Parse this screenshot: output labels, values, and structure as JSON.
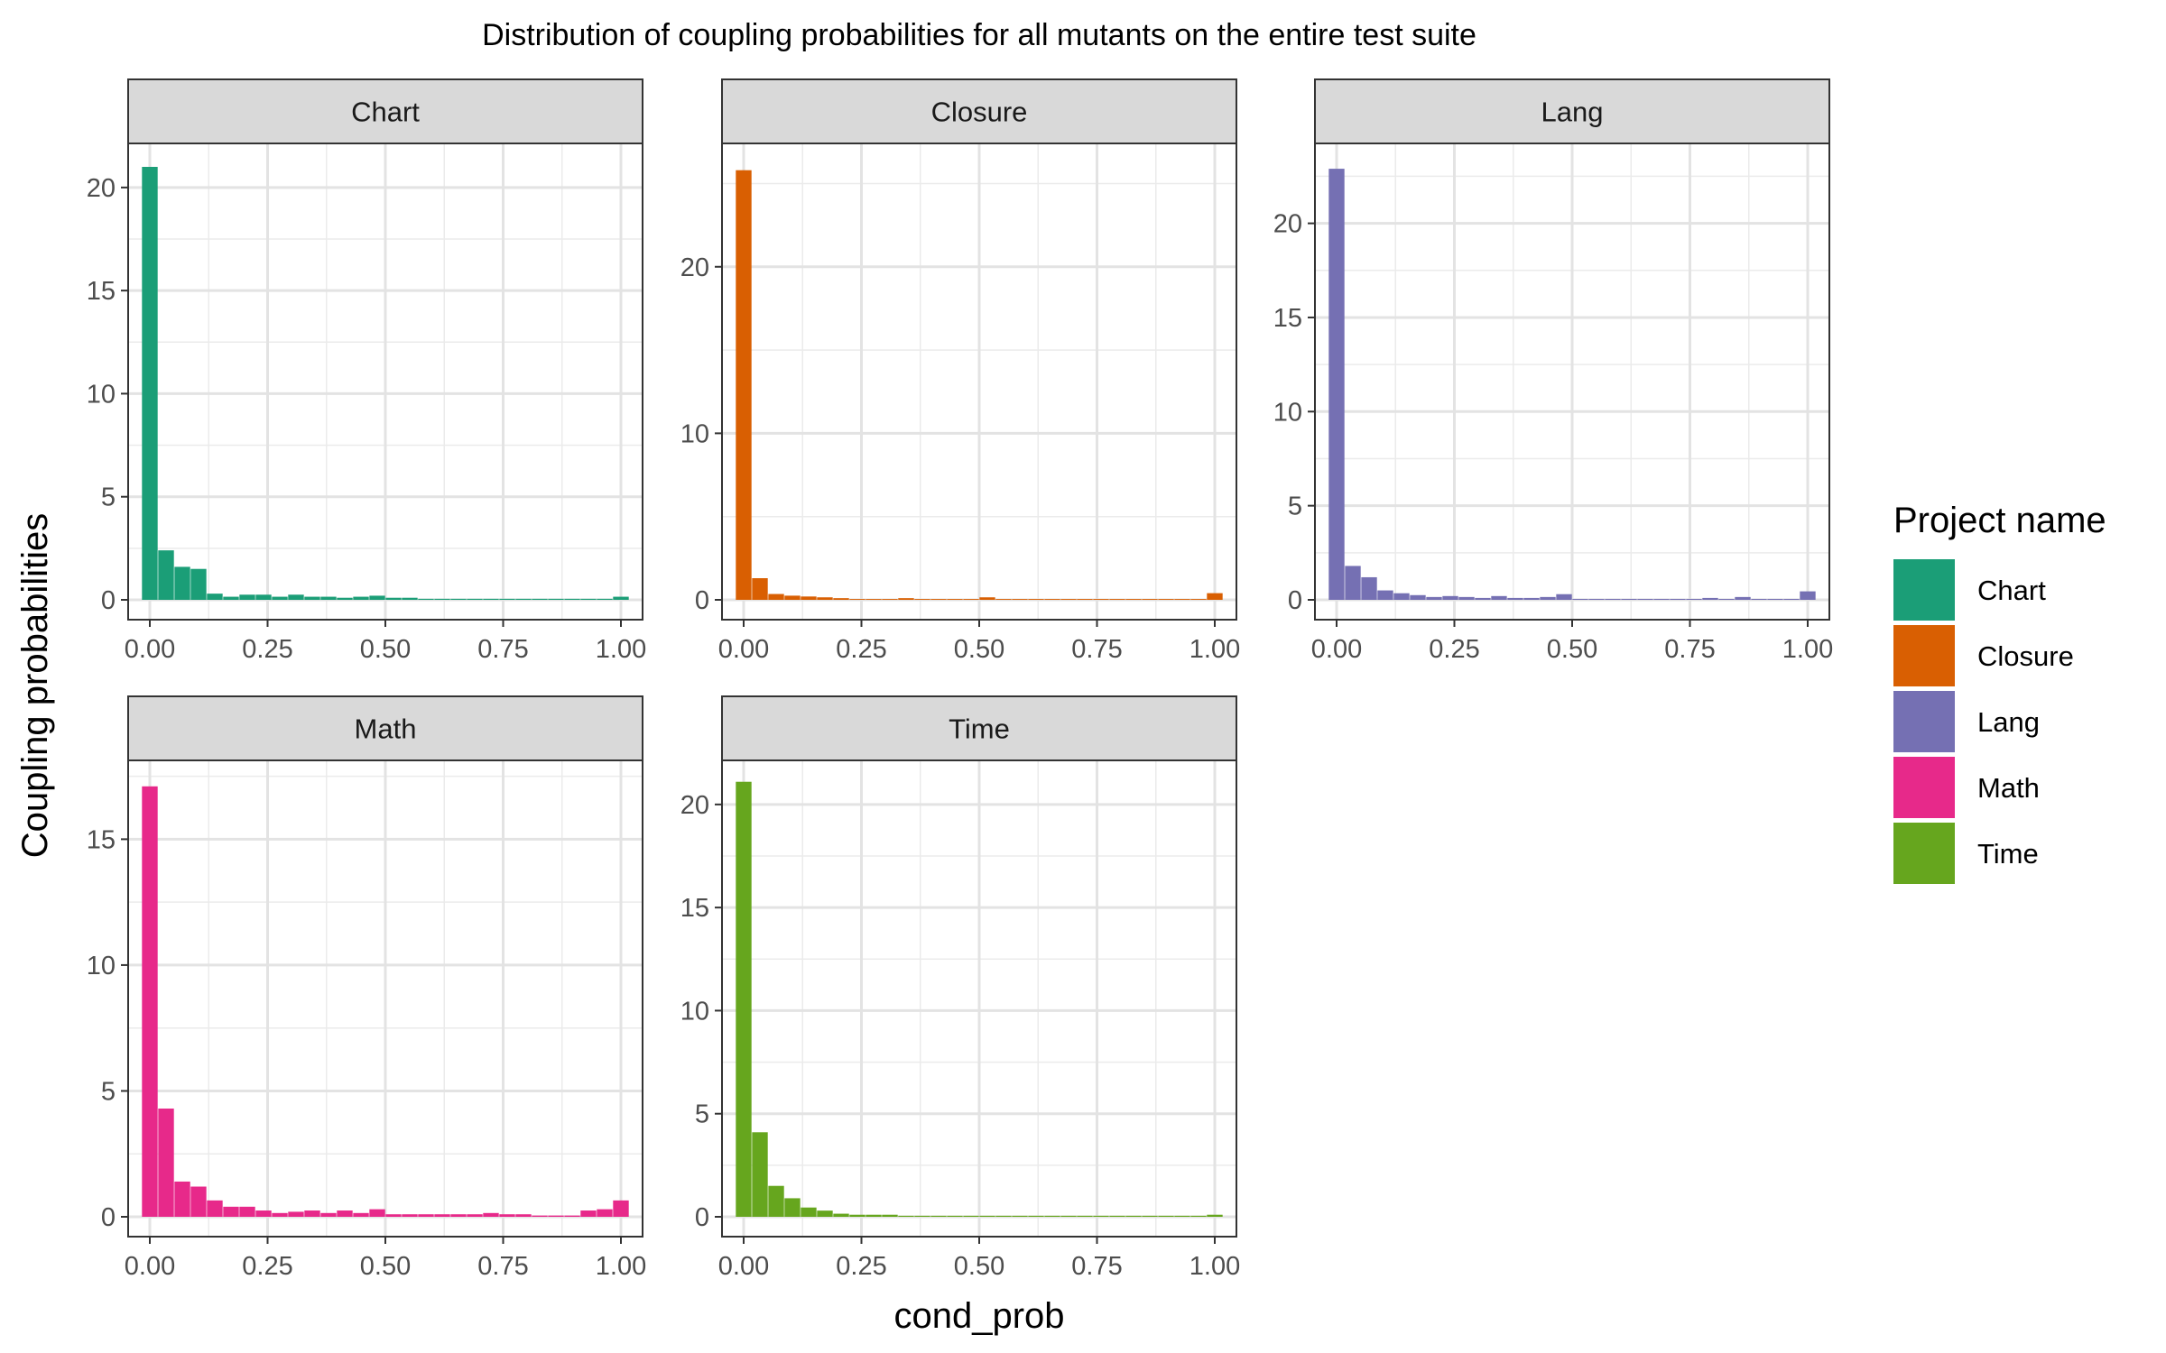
{
  "chart_data": {
    "type": "bar",
    "title": "Distribution of coupling probabilities for all mutants on the entire test suite",
    "xlabel": "cond_prob",
    "ylabel": "Coupling probabilities",
    "legend": {
      "title": "Project name",
      "position": "right"
    },
    "grid": true,
    "bin_width": 0.0333,
    "x_range": [
      0,
      1
    ],
    "x_ticks": [
      "0.00",
      "0.25",
      "0.50",
      "0.75",
      "1.00"
    ],
    "panels": [
      {
        "name": "Chart",
        "color": "#1B9E77",
        "ylim": [
          0,
          21
        ],
        "y_ticks": [
          0,
          5,
          10,
          15,
          20
        ],
        "bin_centers": [
          0,
          0.0345,
          0.069,
          0.1034,
          0.1379,
          0.1724,
          0.2069,
          0.2414,
          0.2759,
          0.3103,
          0.3448,
          0.3793,
          0.4138,
          0.4483,
          0.4828,
          0.5172,
          0.5517,
          0.5862,
          0.6207,
          0.6552,
          0.6897,
          0.7241,
          0.7586,
          0.7931,
          0.8276,
          0.8621,
          0.8966,
          0.931,
          0.9655,
          1.0
        ],
        "values": [
          21.0,
          2.4,
          1.6,
          1.5,
          0.3,
          0.15,
          0.25,
          0.25,
          0.15,
          0.25,
          0.15,
          0.15,
          0.1,
          0.15,
          0.2,
          0.1,
          0.1,
          0.05,
          0.05,
          0.05,
          0.05,
          0.05,
          0.05,
          0.05,
          0.05,
          0.05,
          0.05,
          0.05,
          0.05,
          0.15
        ]
      },
      {
        "name": "Closure",
        "color": "#D95F02",
        "ylim": [
          0,
          26
        ],
        "y_ticks": [
          0,
          10,
          20
        ],
        "bin_centers": [
          0,
          0.0345,
          0.069,
          0.1034,
          0.1379,
          0.1724,
          0.2069,
          0.2414,
          0.2759,
          0.3103,
          0.3448,
          0.3793,
          0.4138,
          0.4483,
          0.4828,
          0.5172,
          0.5517,
          0.5862,
          0.6207,
          0.6552,
          0.6897,
          0.7241,
          0.7586,
          0.7931,
          0.8276,
          0.8621,
          0.8966,
          0.931,
          0.9655,
          1.0
        ],
        "values": [
          25.8,
          1.3,
          0.35,
          0.25,
          0.2,
          0.15,
          0.1,
          0.05,
          0.05,
          0.05,
          0.1,
          0.05,
          0.05,
          0.05,
          0.05,
          0.15,
          0.05,
          0.05,
          0.05,
          0.05,
          0.05,
          0.05,
          0.05,
          0.05,
          0.05,
          0.05,
          0.05,
          0.05,
          0.05,
          0.4
        ]
      },
      {
        "name": "Lang",
        "color": "#7570B3",
        "ylim": [
          0,
          23
        ],
        "y_ticks": [
          0,
          5,
          10,
          15,
          20
        ],
        "bin_centers": [
          0,
          0.0345,
          0.069,
          0.1034,
          0.1379,
          0.1724,
          0.2069,
          0.2414,
          0.2759,
          0.3103,
          0.3448,
          0.3793,
          0.4138,
          0.4483,
          0.4828,
          0.5172,
          0.5517,
          0.5862,
          0.6207,
          0.6552,
          0.6897,
          0.7241,
          0.7586,
          0.7931,
          0.8276,
          0.8621,
          0.8966,
          0.931,
          0.9655,
          1.0
        ],
        "values": [
          22.9,
          1.8,
          1.2,
          0.5,
          0.35,
          0.25,
          0.15,
          0.2,
          0.15,
          0.1,
          0.2,
          0.1,
          0.1,
          0.15,
          0.3,
          0.05,
          0.05,
          0.05,
          0.05,
          0.05,
          0.05,
          0.05,
          0.05,
          0.1,
          0.05,
          0.15,
          0.05,
          0.05,
          0.05,
          0.45
        ]
      },
      {
        "name": "Math",
        "color": "#E7298A",
        "ylim": [
          0,
          17.2
        ],
        "y_ticks": [
          0,
          5,
          10,
          15
        ],
        "bin_centers": [
          0,
          0.0345,
          0.069,
          0.1034,
          0.1379,
          0.1724,
          0.2069,
          0.2414,
          0.2759,
          0.3103,
          0.3448,
          0.3793,
          0.4138,
          0.4483,
          0.4828,
          0.5172,
          0.5517,
          0.5862,
          0.6207,
          0.6552,
          0.6897,
          0.7241,
          0.7586,
          0.7931,
          0.8276,
          0.8621,
          0.8966,
          0.931,
          0.9655,
          1.0
        ],
        "values": [
          17.1,
          4.3,
          1.4,
          1.2,
          0.65,
          0.4,
          0.4,
          0.25,
          0.15,
          0.2,
          0.25,
          0.15,
          0.25,
          0.15,
          0.3,
          0.1,
          0.1,
          0.1,
          0.1,
          0.1,
          0.1,
          0.15,
          0.1,
          0.1,
          0.05,
          0.05,
          0.05,
          0.25,
          0.3,
          0.65
        ]
      },
      {
        "name": "Time",
        "color": "#66A61E",
        "ylim": [
          0,
          21
        ],
        "y_ticks": [
          0,
          5,
          10,
          15,
          20
        ],
        "bin_centers": [
          0,
          0.0345,
          0.069,
          0.1034,
          0.1379,
          0.1724,
          0.2069,
          0.2414,
          0.2759,
          0.3103,
          0.3448,
          0.3793,
          0.4138,
          0.4483,
          0.4828,
          0.5172,
          0.5517,
          0.5862,
          0.6207,
          0.6552,
          0.6897,
          0.7241,
          0.7586,
          0.7931,
          0.8276,
          0.8621,
          0.8966,
          0.931,
          0.9655,
          1.0
        ],
        "values": [
          21.1,
          4.1,
          1.5,
          0.9,
          0.45,
          0.3,
          0.15,
          0.1,
          0.1,
          0.1,
          0.05,
          0.05,
          0.05,
          0.05,
          0.05,
          0.05,
          0.05,
          0.05,
          0.05,
          0.05,
          0.05,
          0.05,
          0.05,
          0.05,
          0.05,
          0.05,
          0.05,
          0.05,
          0.05,
          0.1
        ]
      }
    ]
  }
}
